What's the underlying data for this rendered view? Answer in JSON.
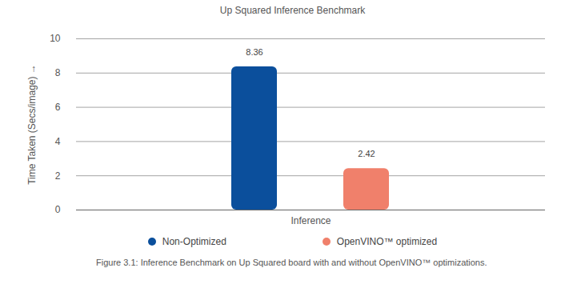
{
  "chart_data": {
    "type": "bar",
    "title": "Up Squared Inference Benchmark",
    "categories": [
      "Inference"
    ],
    "series": [
      {
        "name": "Non-Optimized",
        "color": "#0b4f9c",
        "values": [
          8.36
        ]
      },
      {
        "name": "OpenVINO™ optimized",
        "color": "#f0806b",
        "values": [
          2.42
        ]
      }
    ],
    "y_label": "Time Taken (Secs/image)",
    "ylim": [
      0,
      10
    ],
    "yticks": [
      0,
      2,
      4,
      6,
      8,
      10
    ],
    "grid": true,
    "data_labels": true,
    "legend": "bottom",
    "caption": "Figure 3.1: Inference Benchmark on Up Squared board with and without OpenVINO™ optimizations."
  }
}
